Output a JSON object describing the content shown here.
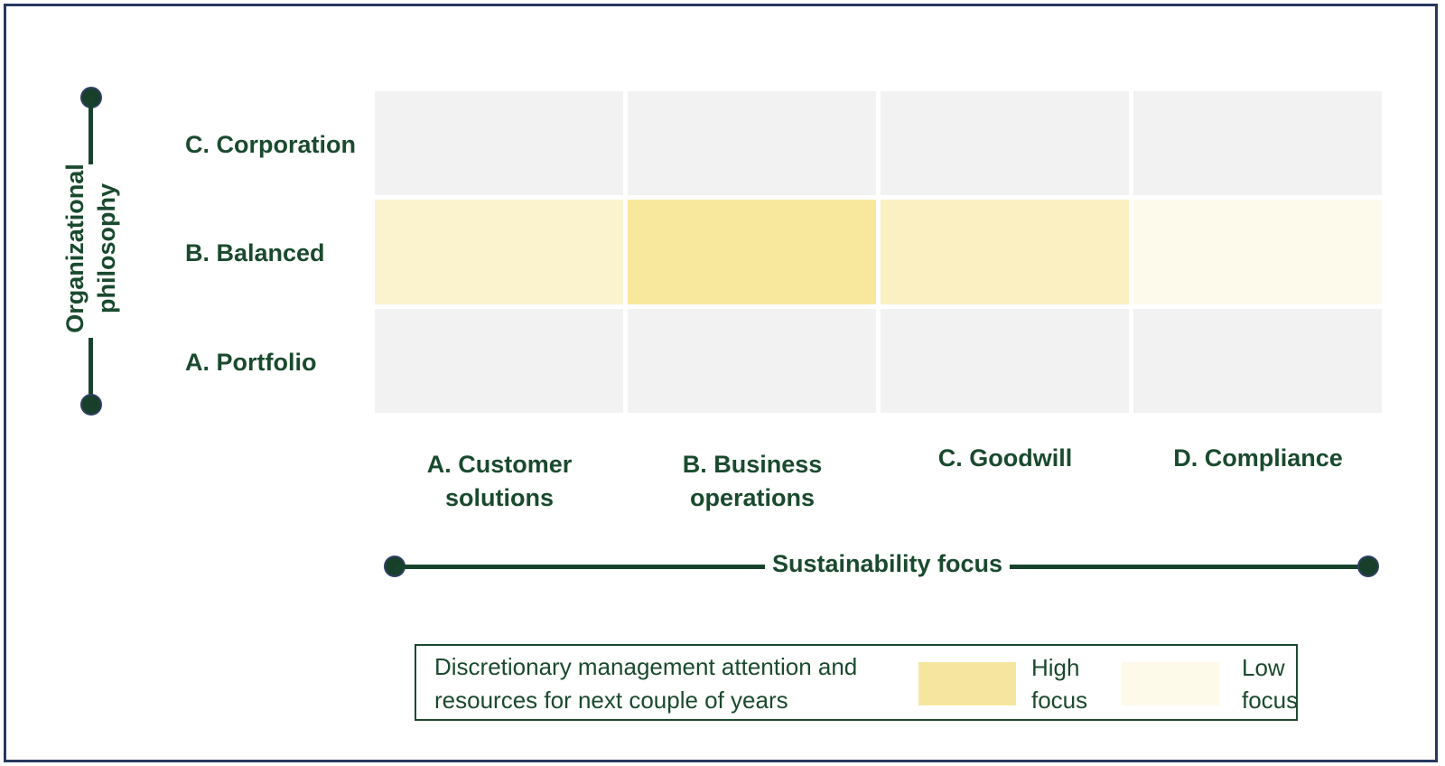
{
  "colors": {
    "text_green": "#1a4a2e",
    "line_green": "#17432c",
    "frame_navy": "#28395f",
    "cell_gray": "#f2f2f2"
  },
  "y_axis": {
    "title_line1": "Organizational",
    "title_line2": "philosophy",
    "row_labels": [
      {
        "label": "C. Corporation"
      },
      {
        "label": "B. Balanced"
      },
      {
        "label": "A. Portfolio"
      }
    ]
  },
  "x_axis": {
    "title": "Sustainability focus",
    "col_labels": [
      {
        "line1": "A. Customer",
        "line2": "solutions"
      },
      {
        "line1": "B. Business",
        "line2": "operations"
      },
      {
        "line1": "C. Goodwill",
        "line2": ""
      },
      {
        "line1": "D. Compliance",
        "line2": ""
      }
    ]
  },
  "legend": {
    "description_line1": "Discretionary management attention and",
    "description_line2": "resources for next couple of years",
    "high": {
      "label_line1": "High",
      "label_line2": "focus",
      "color": "#f6e59e"
    },
    "low": {
      "label_line1": "Low",
      "label_line2": "focus",
      "color": "#fdfaea"
    }
  },
  "chart_data": {
    "type": "heatmap",
    "title": "Discretionary management attention and resources for next couple of years",
    "xlabel": "Sustainability focus",
    "ylabel": "Organizational philosophy",
    "x_categories": [
      "A. Customer solutions",
      "B. Business operations",
      "C. Goodwill",
      "D. Compliance"
    ],
    "y_categories_top_to_bottom": [
      "C. Corporation",
      "B. Balanced",
      "A. Portfolio"
    ],
    "focus_intensity_0_to_1": [
      [
        0,
        0,
        0,
        0
      ],
      [
        0.5,
        1.0,
        0.6,
        0.15
      ],
      [
        0,
        0,
        0,
        0
      ]
    ],
    "cell_colors": [
      [
        "#f2f2f2",
        "#f2f2f2",
        "#f2f2f2",
        "#f2f2f2"
      ],
      [
        "#faf3cd",
        "#f8e89e",
        "#fbf0c2",
        "#fdfaeb"
      ],
      [
        "#f2f2f2",
        "#f2f2f2",
        "#f2f2f2",
        "#f2f2f2"
      ]
    ],
    "legend_entries": [
      {
        "label": "High focus",
        "color": "#f6e59e"
      },
      {
        "label": "Low focus",
        "color": "#fdfaea"
      }
    ],
    "legend_position": "bottom",
    "grid": false
  }
}
